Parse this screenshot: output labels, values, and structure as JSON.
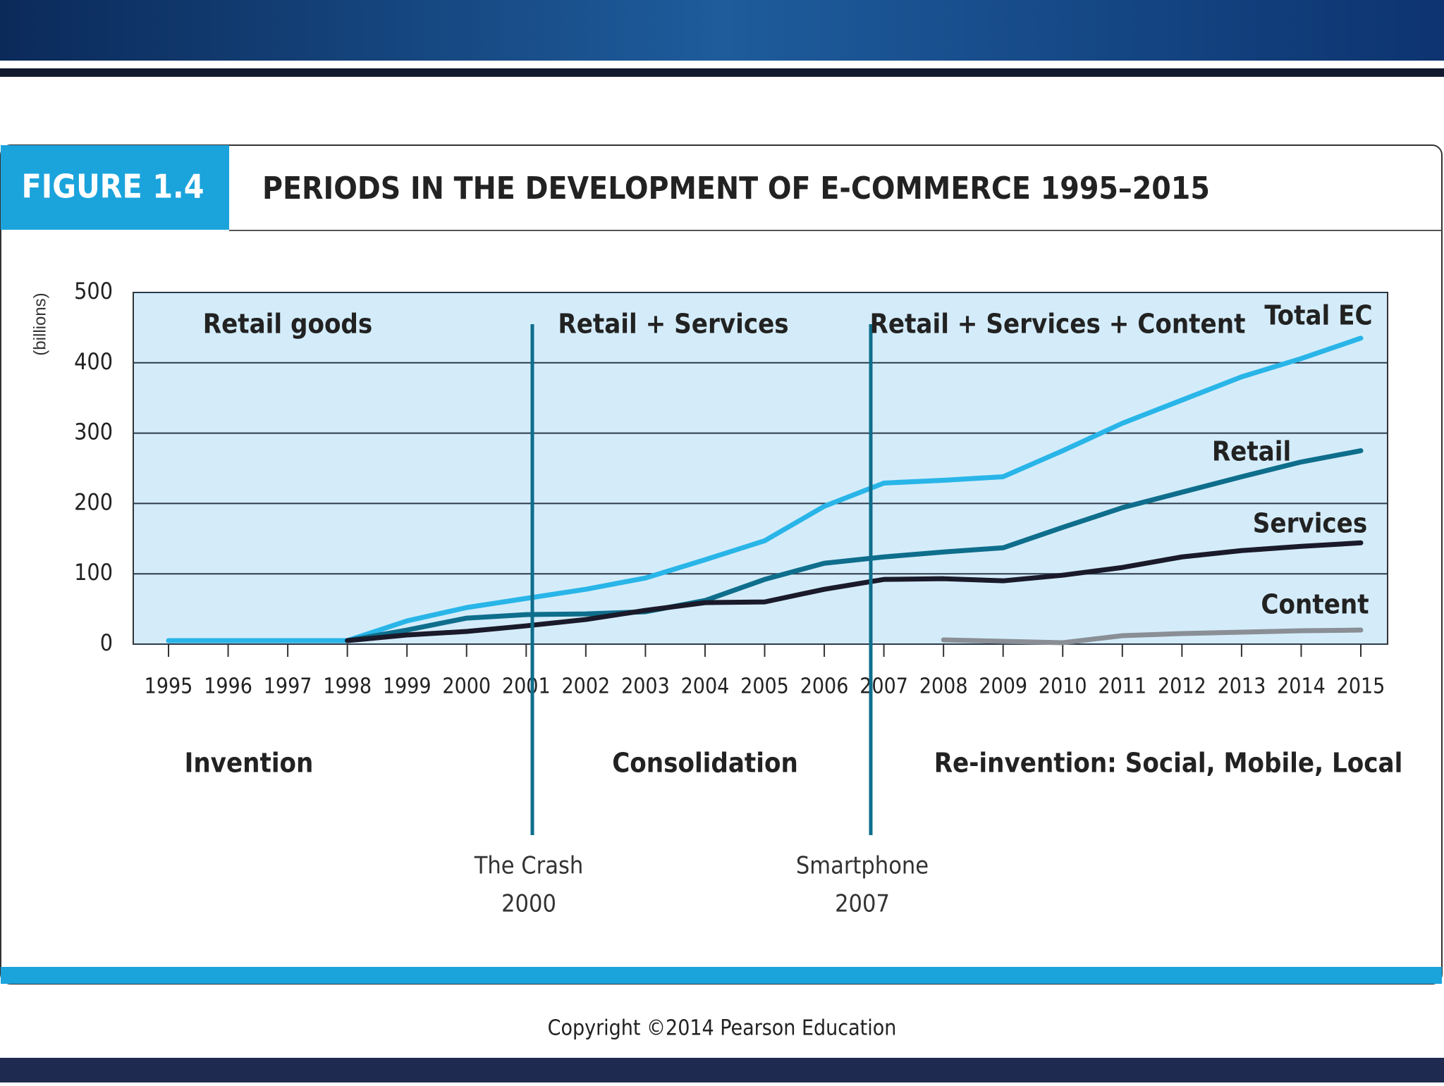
{
  "figure_label": "FIGURE 1.4",
  "copyright": "Copyright ©2014 Pearson Education",
  "chart_data": {
    "type": "line",
    "title": "PERIODS IN THE DEVELOPMENT OF E-COMMERCE 1995–2015",
    "y_label": "(billions)",
    "categories": [
      "1995",
      "1996",
      "1997",
      "1998",
      "1999",
      "2000",
      "2001",
      "2002",
      "2003",
      "2004",
      "2005",
      "2006",
      "2007",
      "2008",
      "2009",
      "2010",
      "2011",
      "2012",
      "2013",
      "2014",
      "2015"
    ],
    "series": [
      {
        "name": "Total EC",
        "color": "#29b5e8",
        "values": [
          5,
          5,
          5,
          5,
          33,
          52,
          65,
          78,
          94,
          120,
          147,
          196,
          229,
          233,
          238,
          275,
          314,
          347,
          380,
          406,
          435
        ]
      },
      {
        "name": "Retail",
        "color": "#0e6e8c",
        "values": [
          null,
          null,
          null,
          5,
          20,
          37,
          42,
          43,
          46,
          62,
          92,
          115,
          124,
          131,
          137,
          166,
          194,
          216,
          238,
          259,
          275
        ]
      },
      {
        "name": "Services",
        "color": "#1a1a2a",
        "values": [
          null,
          null,
          null,
          5,
          13,
          18,
          26,
          35,
          48,
          59,
          60,
          78,
          92,
          93,
          90,
          98,
          109,
          124,
          133,
          139,
          144
        ]
      },
      {
        "name": "Content",
        "color": "#8a8f96",
        "values": [
          null,
          null,
          null,
          null,
          null,
          null,
          null,
          null,
          null,
          null,
          null,
          null,
          null,
          6,
          4,
          2,
          12,
          15,
          17,
          19,
          20
        ]
      }
    ],
    "ylim": [
      0,
      500
    ],
    "yticks": [
      0,
      100,
      200,
      300,
      400,
      500
    ],
    "grid": true,
    "periods": [
      "Retail goods",
      "Retail + Services",
      "Retail + Services + Content"
    ],
    "eras": [
      "Invention",
      "Consolidation",
      "Re-invention: Social, Mobile, Local"
    ],
    "events": [
      {
        "name": "The Crash",
        "year": "2000"
      },
      {
        "name": "Smartphone",
        "year": "2007"
      }
    ]
  }
}
